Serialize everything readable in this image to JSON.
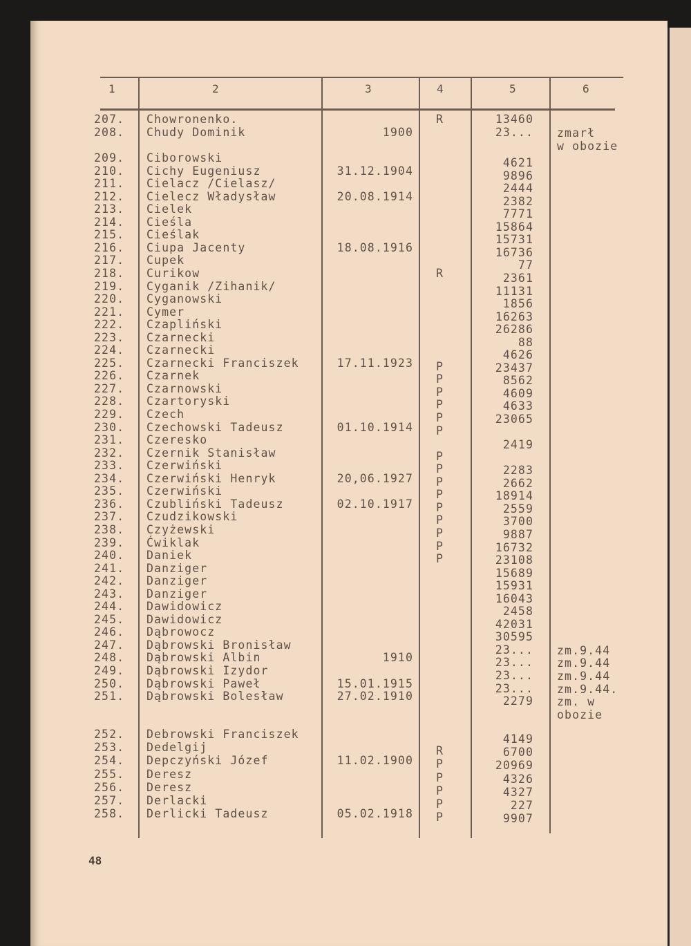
{
  "page_number": "48",
  "table": {
    "headers": [
      "1",
      "2",
      "3",
      "4",
      "5",
      "6"
    ],
    "rows": [
      {
        "no": "207.",
        "name": "Chowronenko.",
        "date": "",
        "mark": "R",
        "num": "13460",
        "note": ""
      },
      {
        "no": "208.",
        "name": "Chudy Dominik",
        "date": "1900",
        "mark": "",
        "num": "23...",
        "note": "zmarł\nw obozie"
      },
      {
        "no": "209.",
        "name": "Ciborowski",
        "date": "",
        "mark": "",
        "num": "4621",
        "note": ""
      },
      {
        "no": "210.",
        "name": "Cichy Eugeniusz",
        "date": "31.12.1904",
        "mark": "",
        "num": "9896",
        "note": ""
      },
      {
        "no": "211.",
        "name": "Cielacz /Cielasz/",
        "date": "",
        "mark": "",
        "num": "2444",
        "note": ""
      },
      {
        "no": "212.",
        "name": "Cielecz Władysław",
        "date": "20.08.1914",
        "mark": "",
        "num": "2382",
        "note": ""
      },
      {
        "no": "213.",
        "name": "Cielek",
        "date": "",
        "mark": "",
        "num": "7771",
        "note": ""
      },
      {
        "no": "214.",
        "name": "Cieśla",
        "date": "",
        "mark": "",
        "num": "15864",
        "note": ""
      },
      {
        "no": "215.",
        "name": "Cieślak",
        "date": "",
        "mark": "",
        "num": "15731",
        "note": ""
      },
      {
        "no": "216.",
        "name": "Ciupa Jacenty",
        "date": "18.08.1916",
        "mark": "",
        "num": "16736",
        "note": ""
      },
      {
        "no": "217.",
        "name": "Cupek",
        "date": "",
        "mark": "",
        "num": "77",
        "note": ""
      },
      {
        "no": "218.",
        "name": "Curikow",
        "date": "",
        "mark": "R",
        "num": "2361",
        "note": ""
      },
      {
        "no": "219.",
        "name": "Cyganik /Zihanik/",
        "date": "",
        "mark": "",
        "num": "11131",
        "note": ""
      },
      {
        "no": "220.",
        "name": "Cyganowski",
        "date": "",
        "mark": "",
        "num": "1856",
        "note": ""
      },
      {
        "no": "221.",
        "name": "Cymer",
        "date": "",
        "mark": "",
        "num": "16263",
        "note": ""
      },
      {
        "no": "222.",
        "name": "Czapliński",
        "date": "",
        "mark": "",
        "num": "26286",
        "note": ""
      },
      {
        "no": "223.",
        "name": "Czarnecki",
        "date": "",
        "mark": "",
        "num": "88",
        "note": ""
      },
      {
        "no": "224.",
        "name": "Czarnecki",
        "date": "",
        "mark": "",
        "num": "4626",
        "note": ""
      },
      {
        "no": "225.",
        "name": "Czarnecki Franciszek",
        "date": "17.11.1923",
        "mark": "P",
        "num": "23437",
        "note": ""
      },
      {
        "no": "226.",
        "name": "Czarnek",
        "date": "",
        "mark": "P",
        "num": "8562",
        "note": ""
      },
      {
        "no": "227.",
        "name": "Czarnowski",
        "date": "",
        "mark": "P",
        "num": "4609",
        "note": ""
      },
      {
        "no": "228.",
        "name": "Czartoryski",
        "date": "",
        "mark": "P",
        "num": "4633",
        "note": ""
      },
      {
        "no": "229.",
        "name": "Czech",
        "date": "",
        "mark": "P",
        "num": "23065",
        "note": ""
      },
      {
        "no": "230.",
        "name": "Czechowski Tadeusz",
        "date": "01.10.1914",
        "mark": "P",
        "num": "",
        "note": ""
      },
      {
        "no": "231.",
        "name": "Czeresko",
        "date": "",
        "mark": "",
        "num": "2419",
        "note": ""
      },
      {
        "no": "232.",
        "name": "Czernik Stanisław",
        "date": "",
        "mark": "P",
        "num": "",
        "note": ""
      },
      {
        "no": "233.",
        "name": "Czerwiński",
        "date": "",
        "mark": "P",
        "num": "2283",
        "note": ""
      },
      {
        "no": "234.",
        "name": "Czerwiński Henryk",
        "date": "20,06.1927",
        "mark": "P",
        "num": "2662",
        "note": ""
      },
      {
        "no": "235.",
        "name": "Czerwiński",
        "date": "",
        "mark": "P",
        "num": "18914",
        "note": ""
      },
      {
        "no": "236.",
        "name": "Czubliński Tadeusz",
        "date": "02.10.1917",
        "mark": "P",
        "num": "2559",
        "note": ""
      },
      {
        "no": "237.",
        "name": "Czudzikowski",
        "date": "",
        "mark": "P",
        "num": "3700",
        "note": ""
      },
      {
        "no": "238.",
        "name": "Czyżewski",
        "date": "",
        "mark": "P",
        "num": "9887",
        "note": ""
      },
      {
        "no": "239.",
        "name": "Ćwiklak",
        "date": "",
        "mark": "P",
        "num": "16732",
        "note": ""
      },
      {
        "no": "240.",
        "name": "Daniek",
        "date": "",
        "mark": "P",
        "num": "23108",
        "note": ""
      },
      {
        "no": "241.",
        "name": "Danziger",
        "date": "",
        "mark": "",
        "num": "15689",
        "note": ""
      },
      {
        "no": "242.",
        "name": "Danziger",
        "date": "",
        "mark": "",
        "num": "15931",
        "note": ""
      },
      {
        "no": "243.",
        "name": "Danziger",
        "date": "",
        "mark": "",
        "num": "16043",
        "note": ""
      },
      {
        "no": "244.",
        "name": "Dawidowicz",
        "date": "",
        "mark": "",
        "num": "2458",
        "note": ""
      },
      {
        "no": "245.",
        "name": "Dawidowicz",
        "date": "",
        "mark": "",
        "num": "42031",
        "note": ""
      },
      {
        "no": "246.",
        "name": "Dąbrowocz",
        "date": "",
        "mark": "",
        "num": "30595",
        "note": ""
      },
      {
        "no": "247.",
        "name": "Dąbrowski Bronisław",
        "date": "",
        "mark": "",
        "num": "23...",
        "note": "zm.9.44"
      },
      {
        "no": "248.",
        "name": "Dąbrowski Albin",
        "date": "1910",
        "mark": "",
        "num": "23...",
        "note": "zm.9.44"
      },
      {
        "no": "249.",
        "name": "Dąbrowski Izydor",
        "date": "",
        "mark": "",
        "num": "23...",
        "note": "zm.9.44"
      },
      {
        "no": "250.",
        "name": "Dąbrowski Paweł",
        "date": "15.01.1915",
        "mark": "",
        "num": "23...",
        "note": "zm.9.44."
      },
      {
        "no": "251.",
        "name": "Dąbrowski Bolesław",
        "date": "27.02.1910",
        "mark": "",
        "num": "2279",
        "note": "zm. w\nobozie"
      },
      {
        "no": "252.",
        "name": "Debrowski Franciszek",
        "date": "",
        "mark": "",
        "num": "4149",
        "note": ""
      },
      {
        "no": "253.",
        "name": "Dedelgij",
        "date": "",
        "mark": "R",
        "num": "6700",
        "note": ""
      },
      {
        "no": "254.",
        "name": "Depczyński Józef",
        "date": "11.02.1900",
        "mark": "P",
        "num": "20969",
        "note": ""
      },
      {
        "no": "255.",
        "name": "Deresz",
        "date": "",
        "mark": "P",
        "num": "4326",
        "note": ""
      },
      {
        "no": "256.",
        "name": "Deresz",
        "date": "",
        "mark": "P",
        "num": "4327",
        "note": ""
      },
      {
        "no": "257.",
        "name": "Derlacki",
        "date": "",
        "mark": "P",
        "num": "227",
        "note": ""
      },
      {
        "no": "258.",
        "name": "Derlicki Tadeusz",
        "date": "05.02.1918",
        "mark": "P",
        "num": "9907",
        "note": ""
      }
    ]
  }
}
